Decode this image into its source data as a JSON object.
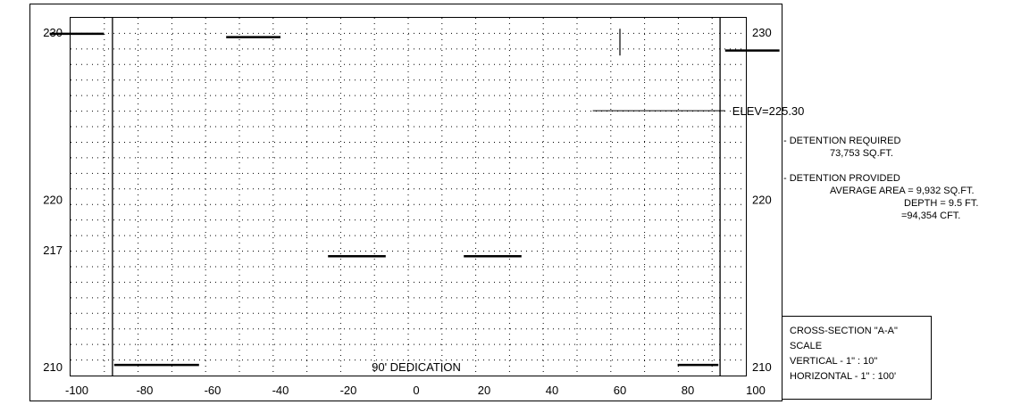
{
  "chart_data": {
    "type": "cross-section",
    "title": "",
    "y_ticks_left": [
      {
        "elev": 230,
        "label": "230"
      },
      {
        "elev": 220,
        "label": "220"
      },
      {
        "elev": 217,
        "label": "217"
      },
      {
        "elev": 210,
        "label": "210"
      }
    ],
    "y_ticks_right": [
      {
        "elev": 230,
        "label": "230"
      },
      {
        "elev": 220,
        "label": "220"
      },
      {
        "elev": 210,
        "label": "210"
      }
    ],
    "x_ticks": [
      {
        "x": -100,
        "label": "-100"
      },
      {
        "x": -80,
        "label": "-80"
      },
      {
        "x": -60,
        "label": "-60"
      },
      {
        "x": -40,
        "label": "-40"
      },
      {
        "x": -20,
        "label": "-20"
      },
      {
        "x": 0,
        "label": "0"
      },
      {
        "x": 20,
        "label": "20"
      },
      {
        "x": 40,
        "label": "40"
      },
      {
        "x": 60,
        "label": "60"
      },
      {
        "x": 80,
        "label": "80"
      },
      {
        "x": 100,
        "label": "100"
      }
    ],
    "dedication_limits": [
      -89.5,
      89.5
    ],
    "segments": [
      {
        "x1": -108,
        "x2": -92,
        "elev": 229.9
      },
      {
        "x1": -56,
        "x2": -40,
        "elev": 229.7
      },
      {
        "x1": 91,
        "x2": 107,
        "elev": 228.9
      },
      {
        "x1": -89,
        "x2": -64,
        "elev": 210.1
      },
      {
        "x1": 77,
        "x2": 89,
        "elev": 210.1
      },
      {
        "x1": -26,
        "x2": -9,
        "elev": 216.6
      },
      {
        "x1": 14,
        "x2": 31,
        "elev": 216.6
      }
    ],
    "tick_mark": {
      "x": 60,
      "elev_top": 230.2,
      "elev_bottom": 228.6
    },
    "elevation_line": {
      "x1": 52,
      "x2": 91,
      "elev": 225.3,
      "label": "ELEV=225.30"
    },
    "dedication_label": "90' DEDICATION"
  },
  "notes": {
    "required_title": "- DETENTION REQUIRED",
    "required_value": "73,753 SQ.FT.",
    "provided_title": "- DETENTION PROVIDED",
    "average_area": "AVERAGE AREA = 9,932 SQ.FT.",
    "depth": "DEPTH = 9.5 FT.",
    "volume": "=94,354 CFT."
  },
  "legend": {
    "title": "CROSS-SECTION \"A-A\"",
    "scale": "SCALE",
    "vertical": "VERTICAL - 1\" : 10\"",
    "horizontal": "HORIZONTAL - 1\" : 100'"
  }
}
